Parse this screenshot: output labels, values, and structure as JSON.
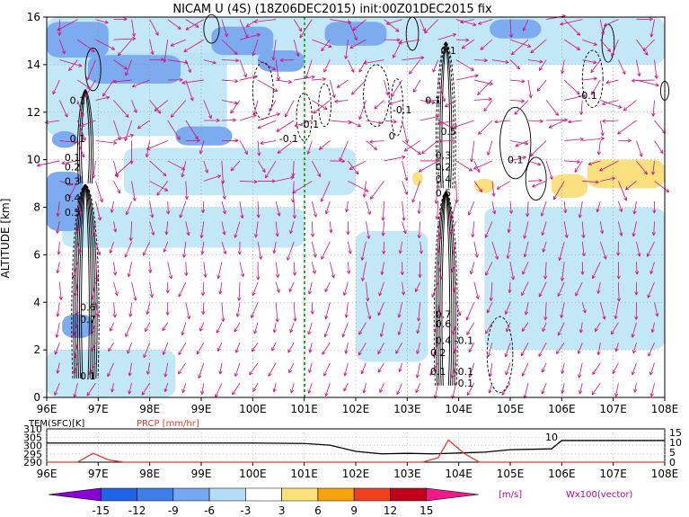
{
  "title": "NICAM U (4S) (18Z06DEC2015) init:00Z01DEC2015 fix",
  "chart_data": [
    {
      "type": "heatmap",
      "name": "main-cross-section",
      "ylabel": "ALTITUDE [km]",
      "x_ticks": [
        "96E",
        "97E",
        "98E",
        "99E",
        "100E",
        "101E",
        "102E",
        "103E",
        "104E",
        "105E",
        "106E",
        "107E",
        "108E"
      ],
      "y_ticks": [
        "0",
        "2",
        "4",
        "6",
        "8",
        "10",
        "12",
        "14",
        "16"
      ],
      "xlim": [
        96,
        108
      ],
      "ylim": [
        0,
        16
      ],
      "grid": true,
      "marker_line_x": 101,
      "shading": [
        {
          "level": "-6 to -3",
          "x": [
            96.0,
            97.2
          ],
          "y": [
            14.3,
            15.8
          ]
        },
        {
          "level": "-6 to -3",
          "x": [
            96.8,
            98.6
          ],
          "y": [
            13.2,
            14.4
          ]
        },
        {
          "level": "-6 to -3",
          "x": [
            96.1,
            96.6
          ],
          "y": [
            10.5,
            11.2
          ]
        },
        {
          "level": "-6 to -3",
          "x": [
            96.0,
            96.7
          ],
          "y": [
            7.0,
            9.5
          ]
        },
        {
          "level": "-6 to -3",
          "x": [
            98.5,
            99.6
          ],
          "y": [
            10.6,
            11.4
          ]
        },
        {
          "level": "-6 to -3",
          "x": [
            99.2,
            100.4
          ],
          "y": [
            14.4,
            15.6
          ]
        },
        {
          "level": "-6 to -3",
          "x": [
            100.1,
            101.0
          ],
          "y": [
            13.7,
            14.6
          ]
        },
        {
          "level": "-6 to -3",
          "x": [
            101.4,
            102.6
          ],
          "y": [
            14.8,
            15.8
          ]
        },
        {
          "level": "-6 to -3",
          "x": [
            104.6,
            105.6
          ],
          "y": [
            15.1,
            15.9
          ]
        },
        {
          "level": "-6 to -3",
          "x": [
            96.3,
            96.9
          ],
          "y": [
            2.5,
            3.5
          ]
        },
        {
          "level": "-3 to 3 (light)",
          "x": [
            96.0,
            108.0
          ],
          "y": [
            14.0,
            16.0
          ]
        },
        {
          "level": "-3 to 3 (light)",
          "x": [
            96.0,
            99.5
          ],
          "y": [
            11.0,
            14.5
          ]
        },
        {
          "level": "-3 to 3 (light)",
          "x": [
            97.5,
            102.0
          ],
          "y": [
            8.5,
            10.5
          ]
        },
        {
          "level": "-3 to 3 (light)",
          "x": [
            96.3,
            101.0
          ],
          "y": [
            6.3,
            8.0
          ]
        },
        {
          "level": "-3 to 3 (light)",
          "x": [
            102.0,
            103.4
          ],
          "y": [
            1.5,
            7.0
          ]
        },
        {
          "level": "-3 to 3 (light)",
          "x": [
            104.5,
            108.0
          ],
          "y": [
            2.0,
            8.0
          ]
        },
        {
          "level": "-3 to 3 (light)",
          "x": [
            96.0,
            98.5
          ],
          "y": [
            0.0,
            2.0
          ]
        },
        {
          "level": "3 to 6",
          "x": [
            106.5,
            108.0
          ],
          "y": [
            8.8,
            10.0
          ]
        },
        {
          "level": "3 to 6",
          "x": [
            105.8,
            106.5
          ],
          "y": [
            8.4,
            9.4
          ]
        },
        {
          "level": "3 to 6",
          "x": [
            104.3,
            104.7
          ],
          "y": [
            8.6,
            9.2
          ]
        },
        {
          "level": "3 to 6",
          "x": [
            103.1,
            103.3
          ],
          "y": [
            8.9,
            9.5
          ]
        }
      ],
      "contour_labels": [
        {
          "text": "0.1",
          "x": 96.6,
          "y": 12.5
        },
        {
          "text": "0.1",
          "x": 96.6,
          "y": 10.9
        },
        {
          "text": "0.1",
          "x": 96.5,
          "y": 10.1
        },
        {
          "text": "0.2",
          "x": 96.5,
          "y": 9.7
        },
        {
          "text": "0.3",
          "x": 96.5,
          "y": 9.1
        },
        {
          "text": "0.4",
          "x": 96.5,
          "y": 8.4
        },
        {
          "text": "0.5",
          "x": 96.5,
          "y": 7.8
        },
        {
          "text": "0.6",
          "x": 96.8,
          "y": 3.8
        },
        {
          "text": "0.7",
          "x": 96.8,
          "y": 3.3
        },
        {
          "text": "0.1",
          "x": 96.8,
          "y": 0.9
        },
        {
          "text": "-0.1",
          "x": 100.7,
          "y": 10.9
        },
        {
          "text": "-0.1",
          "x": 101.1,
          "y": 11.5
        },
        {
          "text": "-0.1",
          "x": 102.9,
          "y": 12.1
        },
        {
          "text": "0",
          "x": 102.7,
          "y": 11.0
        },
        {
          "text": "0.1",
          "x": 103.5,
          "y": 12.5
        },
        {
          "text": "0.1",
          "x": 103.8,
          "y": 14.6
        },
        {
          "text": "-0.1",
          "x": 106.5,
          "y": 12.7
        },
        {
          "text": "0.1",
          "x": 105.1,
          "y": 10.0
        },
        {
          "text": "0.5",
          "x": 103.8,
          "y": 11.2
        },
        {
          "text": "0.3",
          "x": 103.7,
          "y": 10.2
        },
        {
          "text": "0.2",
          "x": 103.7,
          "y": 9.7
        },
        {
          "text": "0.4",
          "x": 103.7,
          "y": 9.2
        },
        {
          "text": "0.5",
          "x": 103.7,
          "y": 8.6
        },
        {
          "text": "0.7",
          "x": 103.7,
          "y": 3.5
        },
        {
          "text": "0.6",
          "x": 103.7,
          "y": 3.1
        },
        {
          "text": "0.4",
          "x": 103.7,
          "y": 2.4
        },
        {
          "text": "0.2",
          "x": 103.6,
          "y": 1.9
        },
        {
          "text": "-0.1",
          "x": 104.1,
          "y": 2.4
        },
        {
          "text": "0.1",
          "x": 103.6,
          "y": 1.1
        },
        {
          "text": "-0.1",
          "x": 104.1,
          "y": 1.1
        },
        {
          "text": "-0.1",
          "x": 104.1,
          "y": 0.6
        }
      ],
      "vector_field": "wind vectors U/W shown as arrows on a regular grid"
    },
    {
      "type": "line",
      "name": "surface-panel",
      "series": [
        {
          "name": "TEM(SFC)[K]",
          "color": "#000000",
          "x": [
            96.0,
            97.0,
            98.0,
            99.0,
            100.0,
            101.0,
            101.5,
            102.0,
            102.5,
            103.0,
            103.5,
            104.0,
            104.5,
            105.0,
            105.5,
            105.8,
            106.0,
            106.5,
            107.0,
            108.0
          ],
          "values": [
            301.5,
            301.5,
            301.5,
            301.5,
            301.5,
            301.2,
            300.2,
            296.5,
            295.0,
            295.3,
            295.0,
            295.5,
            296.0,
            297.5,
            297.8,
            298.0,
            303.0,
            303.0,
            303.0,
            303.0
          ]
        },
        {
          "name": "PRCP [mm/hr]",
          "color": "#e83a2a",
          "x": [
            96.0,
            96.6,
            96.9,
            97.2,
            97.5,
            103.3,
            103.6,
            103.8,
            104.1,
            104.4,
            108.0
          ],
          "values": [
            0,
            0,
            4,
            1,
            0,
            0,
            2,
            10,
            4,
            0,
            0
          ]
        }
      ],
      "left_ticks": [
        "310",
        "305",
        "300",
        "295",
        "290"
      ],
      "right_ticks": [
        "15",
        "10",
        "5",
        "0"
      ],
      "x_ticks": [
        "96E",
        "97E",
        "98E",
        "99E",
        "100E",
        "101E",
        "102E",
        "103E",
        "104E",
        "105E",
        "106E",
        "107E",
        "108E"
      ],
      "annotation": "10"
    },
    {
      "type": "colorbar",
      "ticks": [
        "-15",
        "-12",
        "-9",
        "-6",
        "-3",
        "3",
        "6",
        "9",
        "12",
        "15"
      ],
      "colors": [
        "#8a00d4",
        "#1f63e6",
        "#3c7fea",
        "#74a8f2",
        "#b3dcf7",
        "#ffffff",
        "#fde07a",
        "#f7a20b",
        "#f04020",
        "#c3001c",
        "#f0188c"
      ],
      "unit": "[m/s]",
      "vector_label": "Wx100(vector)"
    }
  ]
}
